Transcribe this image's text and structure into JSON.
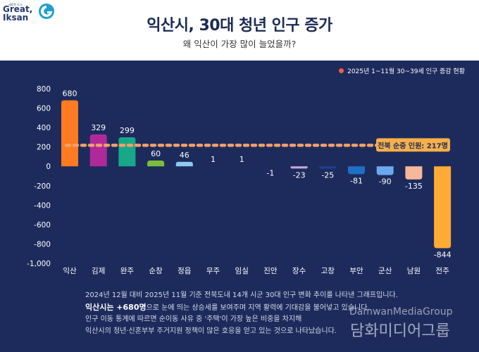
{
  "header": {
    "logo_small": "새로운 도시",
    "logo_line1": "Great,",
    "logo_line2": "Iksan",
    "title": "익산시, 30대 청년 인구 증가",
    "subtitle": "왜 익산이 가장 많이 늘었을까?"
  },
  "colors": {
    "background": "#1d2b5c",
    "average_line": "#f4a06a",
    "average_box": "#f6b04a",
    "legend_dot": "#f25a4e"
  },
  "chart_data": {
    "type": "bar",
    "legend": "2025년 1~11월 30~39세 인구 증감 현황",
    "categories": [
      "익산",
      "김제",
      "완주",
      "순창",
      "정읍",
      "무주",
      "임실",
      "진안",
      "장수",
      "고창",
      "부안",
      "군산",
      "남원",
      "전주"
    ],
    "values": [
      680,
      329,
      299,
      60,
      46,
      1,
      1,
      -1,
      -23,
      -25,
      -81,
      -90,
      -135,
      -844
    ],
    "labels": [
      "680",
      "329",
      "299",
      "60",
      "46",
      "1",
      "1",
      "-1",
      "-23",
      "-25",
      "-81",
      "-90",
      "-135",
      "-844"
    ],
    "bar_colors": [
      "#ff7a21",
      "#b0299a",
      "#17a88a",
      "#7dbd3c",
      "#8fc8f0",
      "#7f8cbf",
      "#7f8cbf",
      "#7f8cbf",
      "#c4a8e0",
      "#1f3f8c",
      "#1f6fc7",
      "#6aa9ef",
      "#f7b79a",
      "#ffaa35"
    ],
    "ylim": [
      -1000,
      800
    ],
    "yticks": [
      "800",
      "600",
      "400",
      "200",
      "0",
      "-200",
      "-400",
      "-600",
      "-800",
      "-1,000"
    ],
    "ytick_values": [
      800,
      600,
      400,
      200,
      0,
      -200,
      -400,
      -600,
      -800,
      -1000
    ],
    "average": {
      "value": 217,
      "label": "전북 순증 인원: 217명"
    },
    "grid": false
  },
  "notes": {
    "line1": "2024년 12월 대비 2025년 11월 기준 전북도내 14개 시군 30대 인구 변화 추이를 나타낸 그래프입니다.",
    "line2_bold": "익산시는 +680명",
    "line2_rest": "으로 눈에 띄는 상승세를 보여주며 지역 활력에 기대감을 불어넣고 있습니다.",
    "line3": "인구 이동 통계에 따르면 순이동 사유 중 '주택'이 가장 높은 비중을 차지해",
    "line4": "익산시의 청년·신혼부부 주거지원 정책이 많은 호응을 얻고 있는 것으로 나타났습니다."
  },
  "watermark": {
    "en": "DamwanMediaGroup",
    "ko": "담화미디어그룹"
  }
}
